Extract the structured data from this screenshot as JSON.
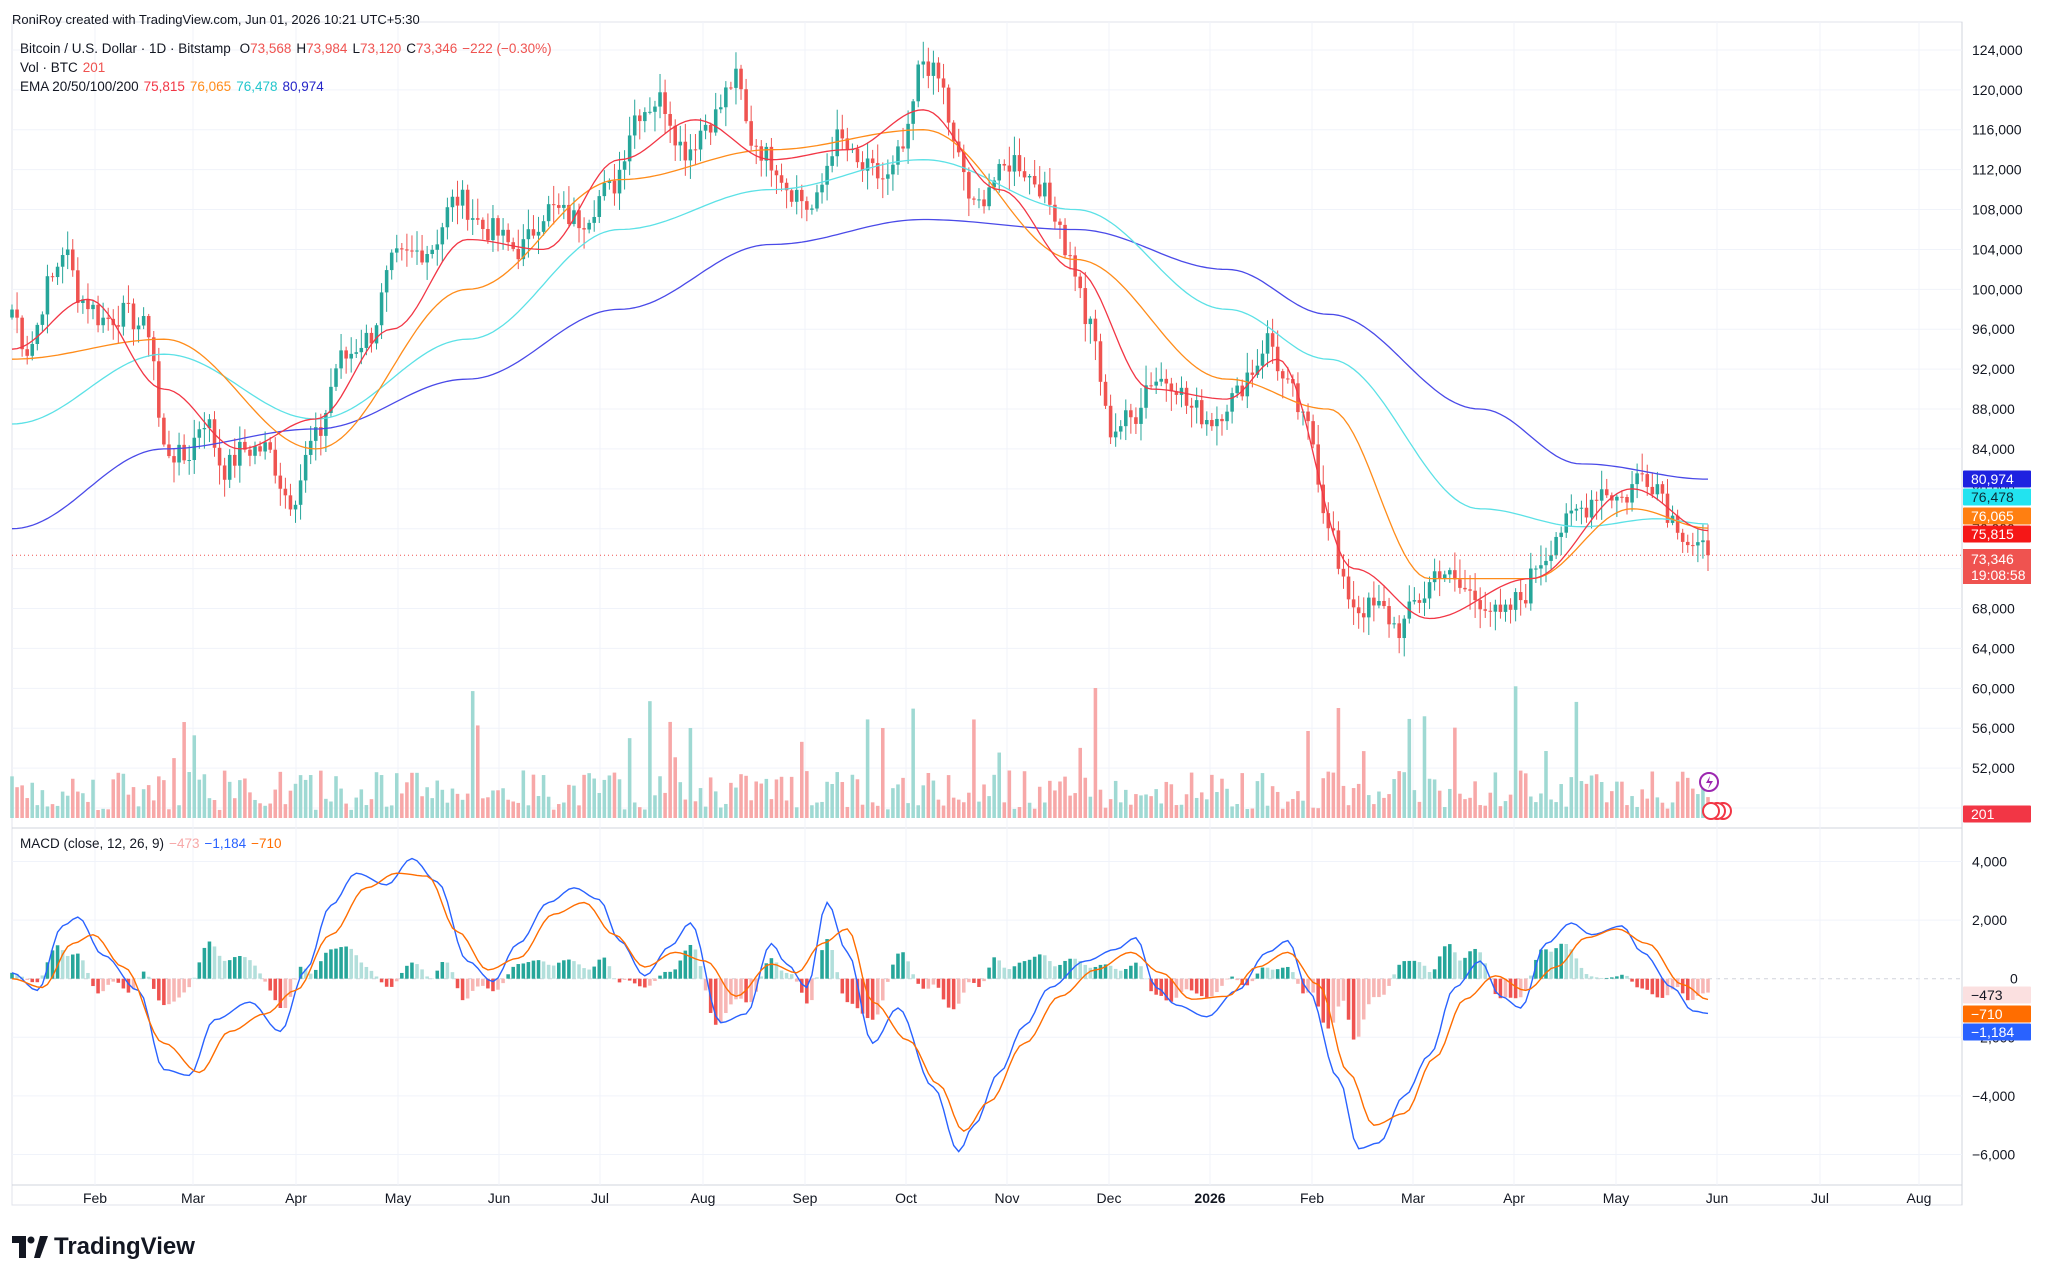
{
  "header": {
    "attribution": "RoniRoy created with TradingView.com, Jun 01, 2026 10:21 UTC+5:30"
  },
  "legend": {
    "symbol": "Bitcoin / U.S. Dollar · 1D · Bitstamp",
    "o_label": "O",
    "o": "73,568",
    "h_label": "H",
    "h": "73,984",
    "l_label": "L",
    "l": "73,120",
    "c_label": "C",
    "c": "73,346",
    "chg": "−222 (−0.30%)",
    "vol_label": "Vol · BTC",
    "vol": "201",
    "ema_label": "EMA 20/50/100/200",
    "ema20": "75,815",
    "ema50": "76,065",
    "ema100": "76,478",
    "ema200": "80,974",
    "macd_label": "MACD (close, 12, 26, 9)",
    "macd_hist": "−473",
    "macd_line": "−1,184",
    "macd_signal": "−710"
  },
  "badges": {
    "ema200": "80,974",
    "ema100": "76,478",
    "ema50": "76,065",
    "ema20": "75,815",
    "price": "73,346",
    "countdown": "19:08:58",
    "volume": "201",
    "macd_hist": "−473",
    "macd_signal": "−710",
    "macd_line": "−1,184"
  },
  "footer": {
    "brand": "TradingView"
  },
  "colors": {
    "up": "#26a69a",
    "down": "#ef5350",
    "ema20": "#f23645",
    "ema50": "#ff8c1a",
    "ema100": "#5ce1e6",
    "ema200": "#4a4ae8",
    "macd": "#2962ff",
    "signal": "#ff6d00"
  },
  "chart_data": {
    "type": "candlestick",
    "symbol": "Bitcoin / U.S. Dollar · 1D · Bitstamp",
    "y_ticks": [
      124000,
      120000,
      116000,
      112000,
      108000,
      104000,
      100000,
      96000,
      92000,
      88000,
      84000,
      80000,
      76000,
      72000,
      68000,
      64000,
      60000,
      56000,
      52000,
      48000
    ],
    "y_tick_labels": [
      "124,000",
      "120,000",
      "116,000",
      "112,000",
      "108,000",
      "104,000",
      "100,000",
      "96,000",
      "92,000",
      "88,000",
      "84,000",
      "80,000",
      "76,000",
      "72,000",
      "68,000",
      "64,000",
      "60,000",
      "56,000",
      "52,000",
      ""
    ],
    "ylim": [
      47000,
      126000
    ],
    "x_ticks": [
      "Feb",
      "Mar",
      "Apr",
      "May",
      "Jun",
      "Jul",
      "Aug",
      "Sep",
      "Oct",
      "Nov",
      "Dec",
      "2026",
      "Feb",
      "Mar",
      "Apr",
      "May",
      "Jun",
      "Jul",
      "Aug"
    ],
    "close_anchors": [
      [
        0,
        98000
      ],
      [
        3,
        94000
      ],
      [
        8,
        101000
      ],
      [
        10,
        104000
      ],
      [
        14,
        99000
      ],
      [
        18,
        97000
      ],
      [
        22,
        97500
      ],
      [
        27,
        96000
      ],
      [
        30,
        84000
      ],
      [
        34,
        83000
      ],
      [
        38,
        87000
      ],
      [
        42,
        82000
      ],
      [
        46,
        84000
      ],
      [
        50,
        84000
      ],
      [
        55,
        79000
      ],
      [
        60,
        85000
      ],
      [
        65,
        93000
      ],
      [
        70,
        95000
      ],
      [
        76,
        103000
      ],
      [
        82,
        104000
      ],
      [
        88,
        109000
      ],
      [
        94,
        106000
      ],
      [
        100,
        104000
      ],
      [
        106,
        108000
      ],
      [
        112,
        107000
      ],
      [
        118,
        110000
      ],
      [
        124,
        118000
      ],
      [
        128,
        119000
      ],
      [
        133,
        114000
      ],
      [
        138,
        117000
      ],
      [
        143,
        121000
      ],
      [
        146,
        115000
      ],
      [
        150,
        113000
      ],
      [
        154,
        110000
      ],
      [
        158,
        108000
      ],
      [
        163,
        115000
      ],
      [
        168,
        112000
      ],
      [
        173,
        111000
      ],
      [
        176,
        114000
      ],
      [
        180,
        123000
      ],
      [
        183,
        121000
      ],
      [
        187,
        113000
      ],
      [
        190,
        108000
      ],
      [
        194,
        111000
      ],
      [
        198,
        113000
      ],
      [
        202,
        111000
      ],
      [
        206,
        108000
      ],
      [
        209,
        103000
      ],
      [
        213,
        96000
      ],
      [
        217,
        86000
      ],
      [
        221,
        87000
      ],
      [
        225,
        91000
      ],
      [
        229,
        91000
      ],
      [
        233,
        88000
      ],
      [
        237,
        87000
      ],
      [
        241,
        89000
      ],
      [
        245,
        92000
      ],
      [
        248,
        95000
      ],
      [
        252,
        90000
      ],
      [
        256,
        86000
      ],
      [
        260,
        77000
      ],
      [
        263,
        70000
      ],
      [
        266,
        68000
      ],
      [
        270,
        68000
      ],
      [
        274,
        66000
      ],
      [
        278,
        69000
      ],
      [
        282,
        72000
      ],
      [
        286,
        70000
      ],
      [
        290,
        69000
      ],
      [
        294,
        67000
      ],
      [
        298,
        69000
      ],
      [
        302,
        73000
      ],
      [
        306,
        76000
      ],
      [
        310,
        78000
      ],
      [
        314,
        80000
      ],
      [
        318,
        79000
      ],
      [
        322,
        81500
      ],
      [
        325,
        80500
      ],
      [
        328,
        77000
      ],
      [
        332,
        74500
      ],
      [
        335,
        73346
      ]
    ],
    "ema200_anchors": [
      [
        0,
        76000
      ],
      [
        30,
        84000
      ],
      [
        60,
        86000
      ],
      [
        90,
        91000
      ],
      [
        120,
        98000
      ],
      [
        150,
        104500
      ],
      [
        180,
        107000
      ],
      [
        210,
        106000
      ],
      [
        240,
        102000
      ],
      [
        260,
        97500
      ],
      [
        290,
        88000
      ],
      [
        310,
        82500
      ],
      [
        335,
        80974
      ]
    ],
    "ema100_anchors": [
      [
        0,
        86500
      ],
      [
        30,
        93500
      ],
      [
        60,
        87000
      ],
      [
        90,
        95000
      ],
      [
        120,
        106000
      ],
      [
        150,
        110000
      ],
      [
        180,
        113000
      ],
      [
        210,
        108000
      ],
      [
        240,
        98000
      ],
      [
        260,
        93000
      ],
      [
        290,
        78000
      ],
      [
        310,
        76200
      ],
      [
        325,
        77000
      ],
      [
        335,
        76478
      ]
    ],
    "ema50_anchors": [
      [
        0,
        93000
      ],
      [
        30,
        95000
      ],
      [
        60,
        84000
      ],
      [
        90,
        100000
      ],
      [
        120,
        111000
      ],
      [
        150,
        114000
      ],
      [
        180,
        116000
      ],
      [
        210,
        103000
      ],
      [
        240,
        91000
      ],
      [
        260,
        88000
      ],
      [
        280,
        71000
      ],
      [
        300,
        71000
      ],
      [
        320,
        78000
      ],
      [
        335,
        76065
      ]
    ],
    "ema20_anchors": [
      [
        0,
        94000
      ],
      [
        15,
        99000
      ],
      [
        30,
        90000
      ],
      [
        45,
        84000
      ],
      [
        60,
        87000
      ],
      [
        75,
        96000
      ],
      [
        90,
        105000
      ],
      [
        105,
        104000
      ],
      [
        120,
        113000
      ],
      [
        135,
        117000
      ],
      [
        150,
        113000
      ],
      [
        165,
        114000
      ],
      [
        180,
        118000
      ],
      [
        195,
        110000
      ],
      [
        210,
        102000
      ],
      [
        225,
        90000
      ],
      [
        240,
        89000
      ],
      [
        250,
        93000
      ],
      [
        265,
        72000
      ],
      [
        280,
        67000
      ],
      [
        300,
        71000
      ],
      [
        320,
        80000
      ],
      [
        335,
        75815
      ]
    ],
    "volume": {
      "label": "Vol · BTC",
      "last": 201
    },
    "macd": {
      "params": "close, 12, 26, 9",
      "y_ticks": [
        4000,
        2000,
        0,
        -2000,
        -4000,
        -6000
      ],
      "y_tick_labels": [
        "4,000",
        "2,000",
        "0",
        "−2,000",
        "−4,000",
        "−6,000"
      ],
      "ylim": [
        -6800,
        4800
      ],
      "last_macd": -1184,
      "last_signal": -710,
      "last_hist": -473,
      "macd_anchors": [
        [
          0,
          200
        ],
        [
          5,
          -400
        ],
        [
          10,
          1800
        ],
        [
          13,
          2100
        ],
        [
          18,
          800
        ],
        [
          25,
          -400
        ],
        [
          30,
          -3100
        ],
        [
          35,
          -3300
        ],
        [
          40,
          -1400
        ],
        [
          47,
          -800
        ],
        [
          53,
          -1800
        ],
        [
          58,
          300
        ],
        [
          63,
          2500
        ],
        [
          68,
          3600
        ],
        [
          74,
          3200
        ],
        [
          79,
          4100
        ],
        [
          84,
          3300
        ],
        [
          90,
          600
        ],
        [
          95,
          -100
        ],
        [
          100,
          1200
        ],
        [
          106,
          2600
        ],
        [
          111,
          3100
        ],
        [
          116,
          2700
        ],
        [
          120,
          1300
        ],
        [
          125,
          100
        ],
        [
          130,
          1100
        ],
        [
          134,
          1900
        ],
        [
          140,
          -1500
        ],
        [
          145,
          -1200
        ],
        [
          150,
          1200
        ],
        [
          153,
          500
        ],
        [
          157,
          -300
        ],
        [
          161,
          2600
        ],
        [
          165,
          900
        ],
        [
          170,
          -2200
        ],
        [
          175,
          -1000
        ],
        [
          182,
          -3700
        ],
        [
          187,
          -5900
        ],
        [
          190,
          -5000
        ],
        [
          195,
          -3200
        ],
        [
          200,
          -1600
        ],
        [
          205,
          -300
        ],
        [
          212,
          600
        ],
        [
          218,
          1000
        ],
        [
          222,
          1400
        ],
        [
          226,
          -300
        ],
        [
          230,
          -900
        ],
        [
          236,
          -1300
        ],
        [
          242,
          -400
        ],
        [
          248,
          900
        ],
        [
          252,
          1300
        ],
        [
          256,
          -400
        ],
        [
          262,
          -3400
        ],
        [
          266,
          -5800
        ],
        [
          270,
          -5600
        ],
        [
          275,
          -4000
        ],
        [
          280,
          -2600
        ],
        [
          285,
          -300
        ],
        [
          290,
          600
        ],
        [
          294,
          -600
        ],
        [
          298,
          -1000
        ],
        [
          303,
          1200
        ],
        [
          308,
          1900
        ],
        [
          312,
          1500
        ],
        [
          318,
          1800
        ],
        [
          322,
          900
        ],
        [
          328,
          -300
        ],
        [
          332,
          -1100
        ],
        [
          335,
          -1184
        ]
      ],
      "signal_anchors": [
        [
          0,
          0
        ],
        [
          6,
          -300
        ],
        [
          12,
          1200
        ],
        [
          16,
          1500
        ],
        [
          22,
          400
        ],
        [
          30,
          -2200
        ],
        [
          37,
          -3200
        ],
        [
          43,
          -1800
        ],
        [
          50,
          -1200
        ],
        [
          56,
          -400
        ],
        [
          63,
          1500
        ],
        [
          70,
          3100
        ],
        [
          76,
          3600
        ],
        [
          82,
          3500
        ],
        [
          88,
          1600
        ],
        [
          94,
          300
        ],
        [
          100,
          700
        ],
        [
          107,
          2200
        ],
        [
          113,
          2600
        ],
        [
          119,
          1500
        ],
        [
          125,
          400
        ],
        [
          131,
          900
        ],
        [
          137,
          600
        ],
        [
          143,
          -600
        ],
        [
          150,
          500
        ],
        [
          155,
          200
        ],
        [
          160,
          1200
        ],
        [
          165,
          1700
        ],
        [
          170,
          -800
        ],
        [
          177,
          -2100
        ],
        [
          183,
          -3600
        ],
        [
          188,
          -5200
        ],
        [
          193,
          -4200
        ],
        [
          200,
          -2200
        ],
        [
          207,
          -600
        ],
        [
          214,
          300
        ],
        [
          221,
          900
        ],
        [
          227,
          200
        ],
        [
          233,
          -700
        ],
        [
          240,
          -600
        ],
        [
          246,
          400
        ],
        [
          252,
          900
        ],
        [
          258,
          -200
        ],
        [
          264,
          -3200
        ],
        [
          269,
          -5000
        ],
        [
          275,
          -4600
        ],
        [
          281,
          -2700
        ],
        [
          287,
          -700
        ],
        [
          293,
          100
        ],
        [
          299,
          -400
        ],
        [
          305,
          400
        ],
        [
          311,
          1400
        ],
        [
          317,
          1700
        ],
        [
          323,
          1200
        ],
        [
          330,
          -200
        ],
        [
          335,
          -710
        ]
      ]
    }
  }
}
